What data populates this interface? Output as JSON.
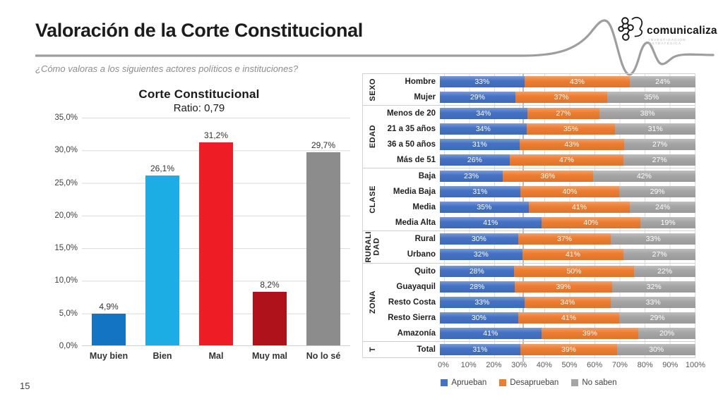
{
  "page_number": "15",
  "header": {
    "title": "Valoración de la Corte Constitucional",
    "subtitle": "¿Cómo valoras a los siguientes actores políticos e instituciones?",
    "logo": {
      "brand": "comunicaliza",
      "tagline": "INVESTIGACIÓN ESTRATÉGICA"
    }
  },
  "colors": {
    "accent_blue": "#4472c4",
    "accent_orange": "#ed7d31",
    "accent_gray": "#a5a5a5",
    "gridline": "#d9d9d9",
    "wave_line": "#9e9e9e"
  },
  "chart_data": [
    {
      "type": "bar",
      "title": "Corte Constitucional",
      "subtitle": "Ratio: 0,79",
      "categories": [
        "Muy bien",
        "Bien",
        "Mal",
        "Muy mal",
        "No lo sé"
      ],
      "values": [
        4.9,
        26.1,
        31.2,
        8.2,
        29.7
      ],
      "value_labels": [
        "4,9%",
        "26,1%",
        "31,2%",
        "8,2%",
        "29,7%"
      ],
      "bar_colors": [
        "#1474c4",
        "#1cade4",
        "#ee1c25",
        "#b0121b",
        "#8c8c8c"
      ],
      "ylim": [
        0,
        35
      ],
      "y_ticks": [
        "0,0%",
        "5,0%",
        "10,0%",
        "15,0%",
        "20,0%",
        "25,0%",
        "30,0%",
        "35,0%"
      ],
      "grid": "on",
      "legend_position": "none"
    },
    {
      "type": "bar",
      "orientation": "horizontal-stacked",
      "series_names": [
        "Aprueban",
        "Desaprueban",
        "No saben"
      ],
      "series_colors": [
        "#4472c4",
        "#ed7d31",
        "#a5a5a5"
      ],
      "groups": [
        {
          "name": "SEXO",
          "rows": [
            {
              "label": "Hombre",
              "values": [
                33,
                43,
                24
              ]
            },
            {
              "label": "Mujer",
              "values": [
                29,
                37,
                35
              ]
            }
          ]
        },
        {
          "name": "EDAD",
          "rows": [
            {
              "label": "Menos de 20",
              "values": [
                34,
                27,
                38
              ]
            },
            {
              "label": "21 a 35 años",
              "values": [
                34,
                35,
                31
              ]
            },
            {
              "label": "36 a 50 años",
              "values": [
                31,
                43,
                27
              ]
            },
            {
              "label": "Más de 51",
              "values": [
                26,
                47,
                27
              ]
            }
          ]
        },
        {
          "name": "CLASE",
          "rows": [
            {
              "label": "Baja",
              "values": [
                23,
                36,
                42
              ]
            },
            {
              "label": "Media Baja",
              "values": [
                31,
                40,
                29
              ]
            },
            {
              "label": "Media",
              "values": [
                35,
                41,
                24
              ]
            },
            {
              "label": "Media Alta",
              "values": [
                41,
                40,
                19
              ]
            }
          ]
        },
        {
          "name": "RURALI\nDAD",
          "rows": [
            {
              "label": "Rural",
              "values": [
                30,
                37,
                33
              ]
            },
            {
              "label": "Urbano",
              "values": [
                32,
                41,
                27
              ]
            }
          ]
        },
        {
          "name": "ZONA",
          "rows": [
            {
              "label": "Quito",
              "values": [
                28,
                50,
                22
              ]
            },
            {
              "label": "Guayaquil",
              "values": [
                28,
                39,
                32
              ]
            },
            {
              "label": "Resto Costa",
              "values": [
                33,
                34,
                33
              ]
            },
            {
              "label": "Resto Sierra",
              "values": [
                30,
                41,
                29
              ]
            },
            {
              "label": "Amazonía",
              "values": [
                41,
                39,
                20
              ]
            }
          ]
        },
        {
          "name": "T",
          "rows": [
            {
              "label": "Total",
              "values": [
                31,
                39,
                30
              ]
            }
          ]
        }
      ],
      "xlim": [
        0,
        100
      ],
      "x_ticks": [
        "0%",
        "10%",
        "20%",
        "30%",
        "40%",
        "50%",
        "60%",
        "70%",
        "80%",
        "90%",
        "100%"
      ],
      "reference_line_x": 31,
      "grid": "on",
      "legend_position": "bottom"
    }
  ]
}
